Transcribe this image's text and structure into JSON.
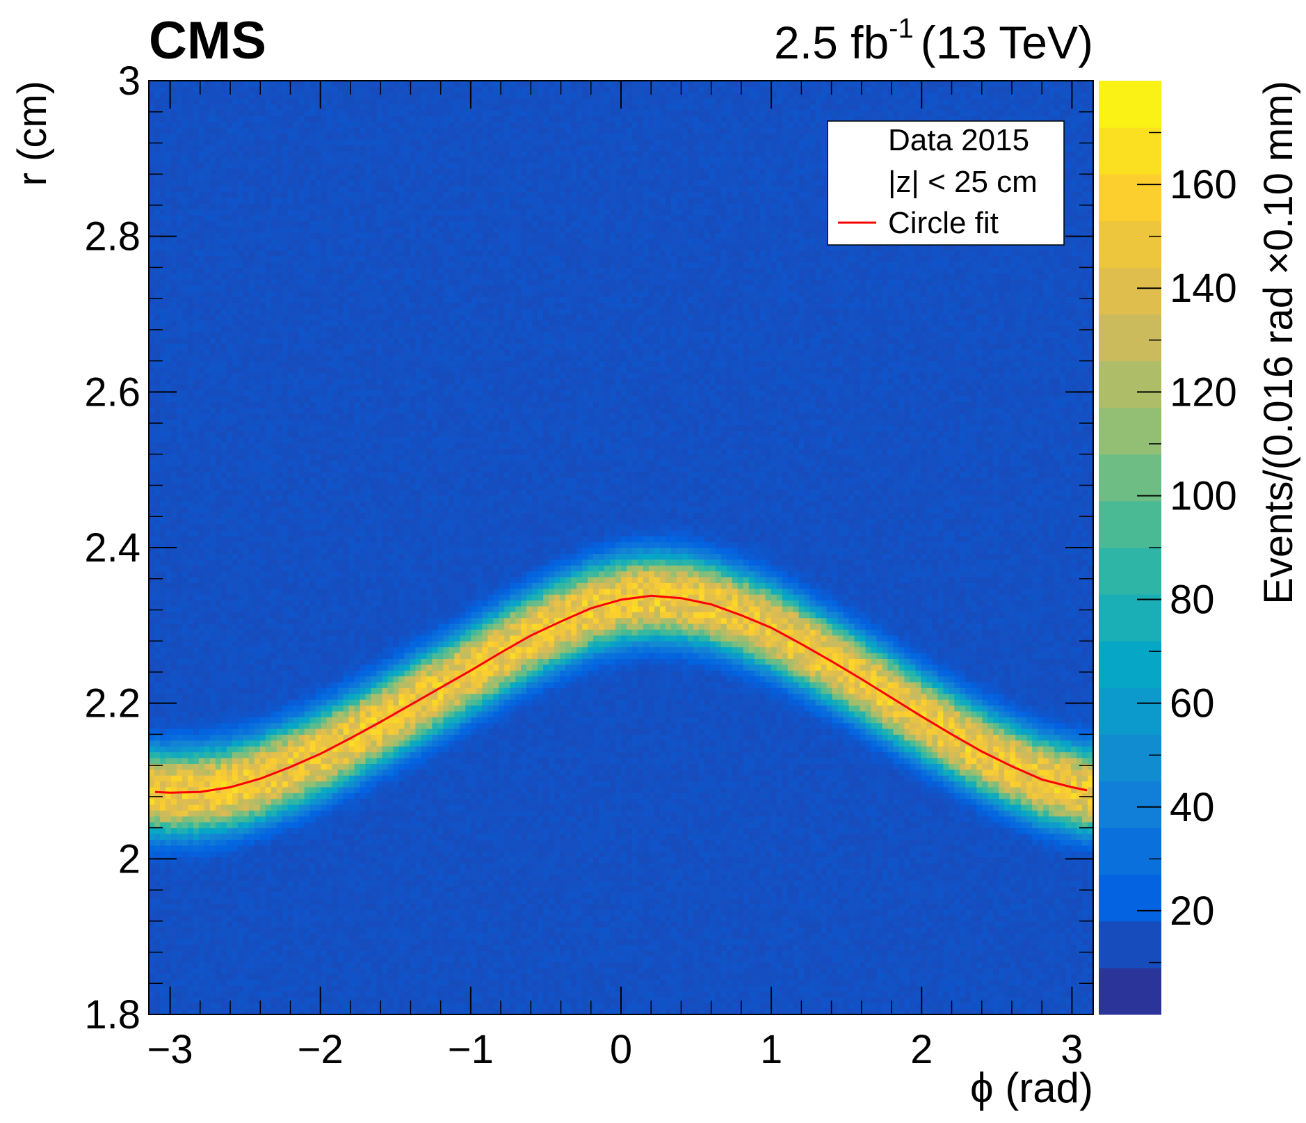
{
  "chart_data": {
    "type": "heatmap",
    "experiment_label": "CMS",
    "luminosity": {
      "value": "2.5 fb",
      "superscript": "-1",
      "energy": "(13 TeV)"
    },
    "xlabel": "ϕ (rad)",
    "ylabel": "r (cm)",
    "colorbar_label": "Events/(0.016 rad ×0.10 mm)",
    "xlim": [
      -3.1416,
      3.1416
    ],
    "ylim": [
      1.8,
      3.0
    ],
    "zlim": [
      0,
      180
    ],
    "x_ticks": [
      {
        "value": -3,
        "label": "−3"
      },
      {
        "value": -2,
        "label": "−2"
      },
      {
        "value": -1,
        "label": "−1"
      },
      {
        "value": 0,
        "label": "0"
      },
      {
        "value": 1,
        "label": "1"
      },
      {
        "value": 2,
        "label": "2"
      },
      {
        "value": 3,
        "label": "3"
      }
    ],
    "y_ticks": [
      {
        "value": 1.8,
        "label": "1.8"
      },
      {
        "value": 2.0,
        "label": "2"
      },
      {
        "value": 2.2,
        "label": "2.2"
      },
      {
        "value": 2.4,
        "label": "2.4"
      },
      {
        "value": 2.6,
        "label": "2.6"
      },
      {
        "value": 2.8,
        "label": "2.8"
      },
      {
        "value": 3.0,
        "label": "3"
      }
    ],
    "z_ticks": [
      {
        "value": 20,
        "label": "20"
      },
      {
        "value": 40,
        "label": "40"
      },
      {
        "value": 60,
        "label": "60"
      },
      {
        "value": 80,
        "label": "80"
      },
      {
        "value": 100,
        "label": "100"
      },
      {
        "value": 120,
        "label": "120"
      },
      {
        "value": 140,
        "label": "140"
      },
      {
        "value": 160,
        "label": "160"
      }
    ],
    "background_level": 15,
    "band_peak_level": 150,
    "band_width_r": 0.045,
    "fit_curve": {
      "name": "Circle fit",
      "color": "#ff0000",
      "phi": [
        -3.1,
        -3.0,
        -2.8,
        -2.6,
        -2.4,
        -2.2,
        -2.0,
        -1.8,
        -1.6,
        -1.4,
        -1.2,
        -1.0,
        -0.8,
        -0.6,
        -0.4,
        -0.2,
        0.0,
        0.2,
        0.4,
        0.6,
        0.8,
        1.0,
        1.2,
        1.4,
        1.6,
        1.8,
        2.0,
        2.2,
        2.4,
        2.6,
        2.8,
        3.0,
        3.1
      ],
      "r": [
        2.086,
        2.085,
        2.086,
        2.092,
        2.103,
        2.118,
        2.135,
        2.155,
        2.176,
        2.198,
        2.22,
        2.242,
        2.265,
        2.287,
        2.305,
        2.322,
        2.333,
        2.338,
        2.335,
        2.327,
        2.313,
        2.297,
        2.276,
        2.254,
        2.231,
        2.207,
        2.183,
        2.16,
        2.138,
        2.119,
        2.102,
        2.092,
        2.088
      ]
    },
    "legend": {
      "placement": "top-right",
      "entries": [
        {
          "label": "Data 2015",
          "marker": "none"
        },
        {
          "label": "|z| < 25 cm",
          "marker": "none"
        },
        {
          "label": "Circle fit",
          "marker": "line",
          "color": "#ff0000"
        }
      ]
    },
    "palette": [
      "#352a87",
      "#0363e1",
      "#1485d4",
      "#06a7c6",
      "#38b99e",
      "#92bf73",
      "#d9ba56",
      "#fcce2e",
      "#f9fb0e"
    ],
    "grid": false
  }
}
